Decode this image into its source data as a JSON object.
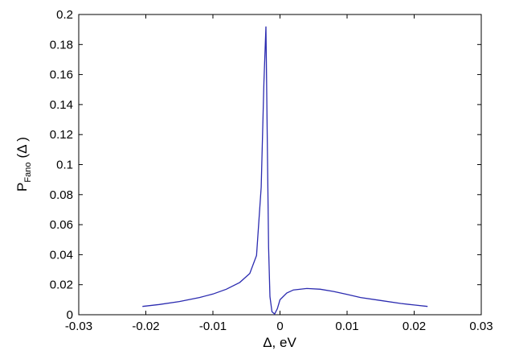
{
  "chart_data": {
    "type": "line",
    "title": "",
    "xlabel": "Δ, eV",
    "ylabel_main": "P",
    "ylabel_sub": "Fano",
    "ylabel_arg": "(Δ )",
    "xlim": [
      -0.03,
      0.03
    ],
    "ylim": [
      0,
      0.2
    ],
    "grid": false,
    "line_color": "#2b2bb0",
    "x_ticks": [
      -0.03,
      -0.02,
      -0.01,
      0,
      0.01,
      0.02,
      0.03
    ],
    "x_tick_labels": [
      "-0.03",
      "-0.02",
      "-0.01",
      "0",
      "0.01",
      "0.02",
      "0.03"
    ],
    "y_ticks": [
      0,
      0.02,
      0.04,
      0.06,
      0.08,
      0.1,
      0.12,
      0.14,
      0.16,
      0.18,
      0.2
    ],
    "y_tick_labels": [
      "0",
      "0.02",
      "0.04",
      "0.06",
      "0.08",
      "0.1",
      "0.12",
      "0.14",
      "0.16",
      "0.18",
      "0.2"
    ],
    "series": [
      {
        "x": [
          -0.0205,
          -0.018,
          -0.015,
          -0.012,
          -0.01,
          -0.008,
          -0.006,
          -0.0045,
          -0.0035,
          -0.0028,
          -0.0024,
          -0.0021,
          -0.0019,
          -0.0017,
          -0.0015,
          -0.0012,
          -0.0008,
          -0.0004,
          0.0,
          0.001,
          0.002,
          0.004,
          0.006,
          0.008,
          0.01,
          0.012,
          0.015,
          0.018,
          0.02,
          0.022
        ],
        "y": [
          0.0055,
          0.0068,
          0.0088,
          0.0115,
          0.0138,
          0.017,
          0.0215,
          0.0275,
          0.0395,
          0.085,
          0.155,
          0.192,
          0.12,
          0.045,
          0.012,
          0.002,
          0.0005,
          0.004,
          0.01,
          0.0145,
          0.0165,
          0.0175,
          0.017,
          0.0155,
          0.0135,
          0.0115,
          0.0095,
          0.0075,
          0.0065,
          0.0055
        ]
      }
    ]
  }
}
